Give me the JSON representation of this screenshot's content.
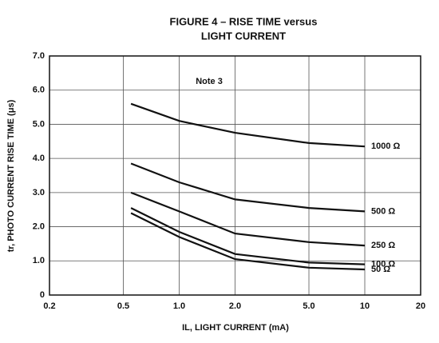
{
  "chart_data": {
    "type": "line",
    "title": "FIGURE 4 – RISE TIME versus",
    "subtitle": "LIGHT CURRENT",
    "x_label": "IL, LIGHT CURRENT (mA)",
    "y_label": "tr, PHOTO CURRENT RISE TIME (μs)",
    "annotation": "Note 3",
    "x_log": true,
    "grid": true,
    "xlim": [
      0.2,
      20
    ],
    "ylim": [
      0,
      7
    ],
    "xticks": [
      0.2,
      0.5,
      {
        "value": 1,
        "label": "1.0"
      },
      {
        "value": 2,
        "label": "2.0"
      },
      {
        "value": 5,
        "label": "5.0"
      },
      10,
      20
    ],
    "yticks": [
      0,
      {
        "value": 1,
        "label": "1.0"
      },
      {
        "value": 2,
        "label": "2.0"
      },
      {
        "value": 3,
        "label": "3.0"
      },
      {
        "value": 4,
        "label": "4.0"
      },
      {
        "value": 5,
        "label": "5.0"
      },
      {
        "value": 6,
        "label": "6.0"
      },
      {
        "value": 7,
        "label": "7.0"
      }
    ],
    "x": [
      0.55,
      1,
      2,
      5,
      10
    ],
    "series": [
      {
        "name": "1000 Ω",
        "color": "#111111",
        "values": [
          5.6,
          5.1,
          4.75,
          4.45,
          4.35
        ]
      },
      {
        "name": "500 Ω",
        "color": "#111111",
        "values": [
          3.85,
          3.3,
          2.8,
          2.55,
          2.45
        ]
      },
      {
        "name": "250 Ω",
        "color": "#111111",
        "values": [
          3.0,
          2.45,
          1.8,
          1.55,
          1.45
        ]
      },
      {
        "name": "100 Ω",
        "color": "#111111",
        "values": [
          2.55,
          1.85,
          1.2,
          0.95,
          0.9
        ]
      },
      {
        "name": "50 Ω",
        "color": "#111111",
        "values": [
          2.4,
          1.7,
          1.05,
          0.8,
          0.75
        ]
      }
    ]
  }
}
